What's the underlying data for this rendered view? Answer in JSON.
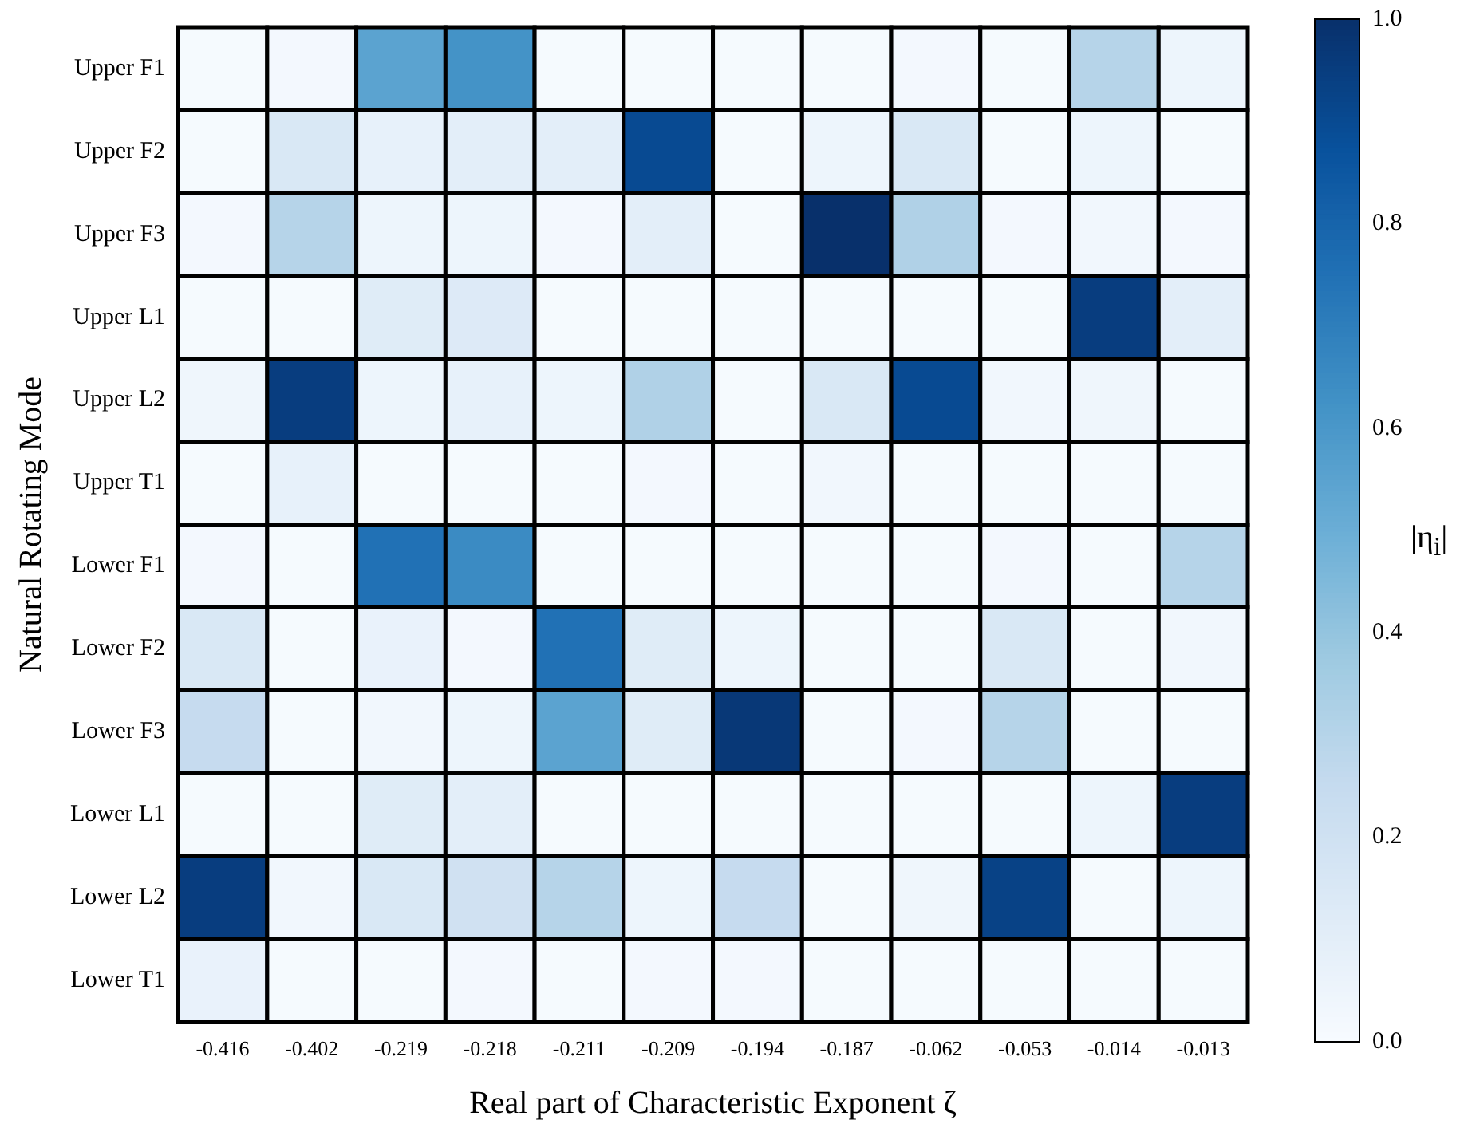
{
  "chart_data": {
    "type": "heatmap",
    "xlabel": "Real part of Characteristic Exponent ζ",
    "ylabel": "Natural Rotating Mode",
    "clabel": "|η$_{i}$|",
    "categories": [
      "-0.416",
      "-0.402",
      "-0.219",
      "-0.218",
      "-0.211",
      "-0.209",
      "-0.194",
      "-0.187",
      "-0.062",
      "-0.053",
      "-0.014",
      "-0.013"
    ],
    "y_categories": [
      "Upper F1",
      "Upper F2",
      "Upper F3",
      "Upper L1",
      "Upper L2",
      "Upper T1",
      "Lower F1",
      "Lower F2",
      "Lower F3",
      "Lower L1",
      "Lower L2",
      "Lower T1"
    ],
    "cells": [
      [
        0.01,
        0.02,
        0.55,
        0.62,
        0.01,
        0.01,
        0.01,
        0.01,
        0.02,
        0.01,
        0.3,
        0.05
      ],
      [
        0.01,
        0.15,
        0.08,
        0.1,
        0.1,
        0.9,
        0.01,
        0.05,
        0.15,
        0.01,
        0.05,
        0.01
      ],
      [
        0.02,
        0.3,
        0.05,
        0.05,
        0.02,
        0.1,
        0.01,
        1.0,
        0.32,
        0.02,
        0.03,
        0.02
      ],
      [
        0.01,
        0.01,
        0.12,
        0.13,
        0.01,
        0.01,
        0.01,
        0.01,
        0.01,
        0.01,
        0.95,
        0.1
      ],
      [
        0.04,
        0.95,
        0.05,
        0.08,
        0.05,
        0.32,
        0.01,
        0.15,
        0.9,
        0.03,
        0.04,
        0.01
      ],
      [
        0.01,
        0.08,
        0.01,
        0.01,
        0.01,
        0.02,
        0.01,
        0.03,
        0.01,
        0.01,
        0.01,
        0.01
      ],
      [
        0.02,
        0.01,
        0.75,
        0.65,
        0.01,
        0.01,
        0.01,
        0.01,
        0.01,
        0.02,
        0.01,
        0.3
      ],
      [
        0.15,
        0.01,
        0.07,
        0.02,
        0.75,
        0.12,
        0.05,
        0.01,
        0.01,
        0.15,
        0.01,
        0.03
      ],
      [
        0.25,
        0.01,
        0.03,
        0.05,
        0.55,
        0.12,
        0.97,
        0.01,
        0.02,
        0.3,
        0.01,
        0.01
      ],
      [
        0.01,
        0.01,
        0.12,
        0.1,
        0.01,
        0.01,
        0.01,
        0.01,
        0.01,
        0.01,
        0.05,
        0.95
      ],
      [
        0.95,
        0.03,
        0.15,
        0.2,
        0.3,
        0.05,
        0.25,
        0.01,
        0.04,
        0.93,
        0.01,
        0.05
      ],
      [
        0.07,
        0.01,
        0.01,
        0.02,
        0.01,
        0.02,
        0.02,
        0.01,
        0.01,
        0.01,
        0.01,
        0.01
      ]
    ],
    "clim": [
      0,
      1
    ],
    "cticks": [
      {
        "value": 0,
        "label": "0.0"
      },
      {
        "value": 0.2,
        "label": "0.2"
      },
      {
        "value": 0.4,
        "label": "0.4"
      },
      {
        "value": 0.6,
        "label": "0.6"
      },
      {
        "value": 0.8,
        "label": "0.8"
      },
      {
        "value": 1,
        "label": "1.0"
      }
    ]
  }
}
